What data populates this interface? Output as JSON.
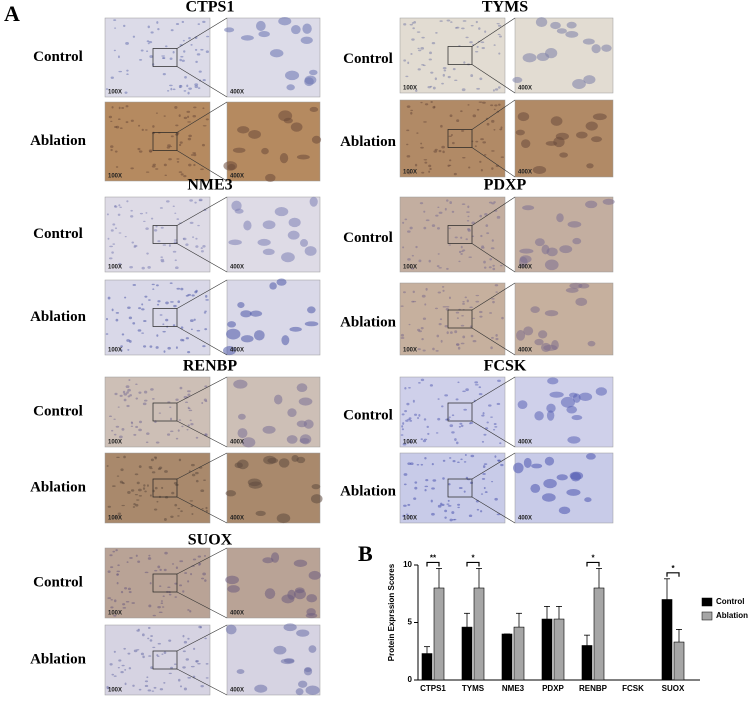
{
  "figure": {
    "panel_a_label": "A",
    "panel_b_label": "B",
    "panels": [
      {
        "gene": "CTPS1",
        "rows": [
          {
            "condition": "Control",
            "low_mag": "100X",
            "high_mag": "400X"
          },
          {
            "condition": "Ablation",
            "low_mag": "100X",
            "high_mag": "400X"
          }
        ]
      },
      {
        "gene": "NME3",
        "rows": [
          {
            "condition": "Control",
            "low_mag": "100X",
            "high_mag": "400X"
          },
          {
            "condition": "Ablation",
            "low_mag": "100X",
            "high_mag": "400X"
          }
        ]
      },
      {
        "gene": "RENBP",
        "rows": [
          {
            "condition": "Control",
            "low_mag": "100X",
            "high_mag": "400X"
          },
          {
            "condition": "Ablation",
            "low_mag": "100X",
            "high_mag": "400X"
          }
        ]
      },
      {
        "gene": "SUOX",
        "rows": [
          {
            "condition": "Control",
            "low_mag": "100X",
            "high_mag": "400X"
          },
          {
            "condition": "Ablation",
            "low_mag": "100X",
            "high_mag": "400X"
          }
        ]
      },
      {
        "gene": "TYMS",
        "rows": [
          {
            "condition": "Control",
            "low_mag": "100X",
            "high_mag": "400X"
          },
          {
            "condition": "Ablation",
            "low_mag": "100X",
            "high_mag": "400X"
          }
        ]
      },
      {
        "gene": "PDXP",
        "rows": [
          {
            "condition": "Control",
            "low_mag": "100X",
            "high_mag": "400X"
          },
          {
            "condition": "Ablation",
            "low_mag": "100X",
            "high_mag": "400X"
          }
        ]
      },
      {
        "gene": "FCSK",
        "rows": [
          {
            "condition": "Control",
            "low_mag": "100X",
            "high_mag": "400X"
          },
          {
            "condition": "Ablation",
            "low_mag": "100X",
            "high_mag": "400X"
          }
        ]
      }
    ]
  },
  "chart_data": {
    "type": "bar",
    "y_label": "Protein Exprssion Scores",
    "categories": [
      "CTPS1",
      "TYMS",
      "NME3",
      "PDXP",
      "RENBP",
      "FCSK",
      "SUOX"
    ],
    "series": [
      {
        "name": "Control",
        "color": "#000000",
        "values": [
          2.3,
          4.6,
          4.0,
          5.3,
          3.0,
          0,
          7.0
        ],
        "errors": [
          0.6,
          1.2,
          0,
          1.1,
          0.9,
          0,
          1.8
        ]
      },
      {
        "name": "Ablation",
        "color": "#a6a6a6",
        "values": [
          8.0,
          8.0,
          4.6,
          5.3,
          8.0,
          0,
          3.3
        ],
        "errors": [
          1.7,
          1.7,
          1.2,
          1.1,
          1.7,
          0,
          1.1
        ]
      }
    ],
    "annotations": [
      {
        "category": "CTPS1",
        "label": "**"
      },
      {
        "category": "TYMS",
        "label": "*"
      },
      {
        "category": "RENBP",
        "label": "*"
      },
      {
        "category": "SUOX",
        "label": "*"
      }
    ],
    "ylim": [
      0,
      10
    ],
    "yticks": [
      0,
      5,
      10
    ],
    "legend": "right"
  }
}
